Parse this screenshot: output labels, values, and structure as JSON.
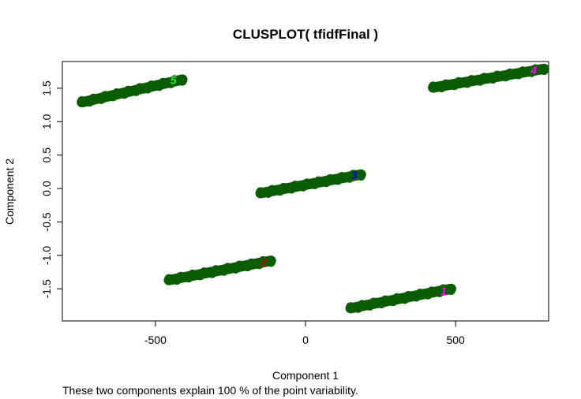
{
  "chart_data": {
    "type": "scatter",
    "title": "CLUSPLOT( tfidfFinal )",
    "xlabel": "Component 1",
    "ylabel": "Component 2",
    "caption": "These two components explain 100 % of the point variability.",
    "xlim": [
      -810,
      810
    ],
    "ylim": [
      -1.98,
      1.9
    ],
    "xticks": [
      -500,
      0,
      500
    ],
    "xtick_labels": [
      "-500",
      "0",
      "500"
    ],
    "yticks": [
      -1.5,
      -1.0,
      -0.5,
      0.0,
      0.5,
      1.0,
      1.5
    ],
    "ytick_labels": [
      "-1.5",
      "-1.0",
      "-0.5",
      "0.0",
      "0.5",
      "1.0",
      "1.5"
    ],
    "point_color": "#0a5c00",
    "clusters": [
      {
        "label": "1",
        "color": "#ff00ff",
        "x_start": 150,
        "y_start": -1.79,
        "x_end": 485,
        "y_end": -1.5,
        "label_x": 460,
        "label_y": -1.53
      },
      {
        "label": "2",
        "color": "#d00000",
        "x_start": -455,
        "y_start": -1.37,
        "x_end": -115,
        "y_end": -1.08,
        "label_x": -140,
        "label_y": -1.1
      },
      {
        "label": "3",
        "color": "#0000d0",
        "x_start": -150,
        "y_start": -0.07,
        "x_end": 185,
        "y_end": 0.21,
        "label_x": 162,
        "label_y": 0.2
      },
      {
        "label": "4",
        "color": "#ff00ff",
        "x_start": 425,
        "y_start": 1.51,
        "x_end": 795,
        "y_end": 1.79,
        "label_x": 760,
        "label_y": 1.77
      },
      {
        "label": "5",
        "color": "#22ee22",
        "x_start": -745,
        "y_start": 1.29,
        "x_end": -410,
        "y_end": 1.63,
        "label_x": -440,
        "label_y": 1.62
      }
    ]
  }
}
